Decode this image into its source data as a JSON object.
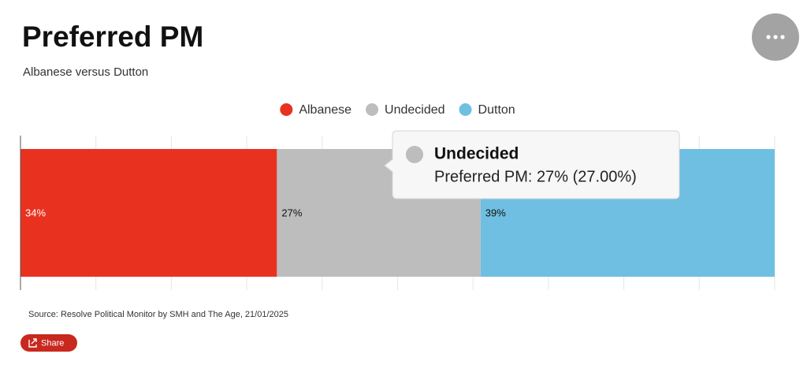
{
  "chart_data": {
    "type": "stacked-bar",
    "title": "Preferred PM",
    "subtitle": "Albanese versus Dutton",
    "series": [
      {
        "name": "Albanese",
        "color": "#e8321f",
        "values": [
          34
        ],
        "value_labels": [
          "34%"
        ]
      },
      {
        "name": "Undecided",
        "color": "#bdbdbd",
        "values": [
          27
        ],
        "value_labels": [
          "27%"
        ]
      },
      {
        "name": "Dutton",
        "color": "#6fbfe2",
        "values": [
          39
        ],
        "value_labels": [
          "39%"
        ]
      }
    ],
    "xlim": [
      0,
      100
    ],
    "xticks": [
      0,
      10,
      20,
      30,
      40,
      50,
      60,
      70,
      80,
      90,
      100
    ],
    "grid": true,
    "legend": "top",
    "tooltip": {
      "title": "Undecided",
      "text": "Preferred PM: 27% (27.00%)"
    },
    "source": "Source: Resolve Political Monitor by SMH and The Age, 21/01/2025",
    "share_label": "Share"
  }
}
